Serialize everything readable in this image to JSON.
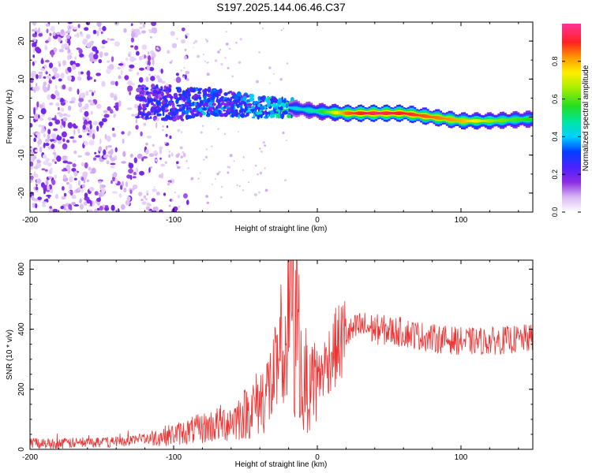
{
  "title": "S197.2025.144.06.46.C37",
  "chart_data": [
    {
      "type": "heatmap",
      "xlabel": "Height of straight line (km)",
      "ylabel": "Frequency (Hz)",
      "xlim": [
        -200,
        150
      ],
      "ylim": [
        -25,
        25
      ],
      "xticks": [
        -200,
        -100,
        0,
        100
      ],
      "yticks": [
        -20,
        -10,
        0,
        10,
        20
      ],
      "colorbar": {
        "label": "Normalized spectral amplitude",
        "range": [
          0,
          1
        ],
        "ticks": [
          "0.0",
          "0.2",
          "0.4",
          "0.6",
          "0.8"
        ],
        "tick_values": [
          0,
          0.2,
          0.4,
          0.6,
          0.8
        ]
      },
      "ridge": {
        "x": [
          -120,
          -100,
          -80,
          -60,
          -40,
          -20,
          0,
          20,
          40,
          60,
          80,
          100,
          120,
          150
        ],
        "frequency": [
          4,
          3.5,
          4,
          3.5,
          2.5,
          2.5,
          1.5,
          1,
          1,
          1,
          0,
          -1,
          -1,
          -0.5
        ],
        "amplitude": [
          0.22,
          0.25,
          0.3,
          0.28,
          0.35,
          0.4,
          0.5,
          0.85,
          0.95,
          0.9,
          0.85,
          0.8,
          0.65,
          0.55
        ]
      },
      "noise_region": [
        -200,
        -120
      ]
    },
    {
      "type": "line",
      "xlabel": "Height of straight line (km)",
      "ylabel": "SNR (10 * v/v)",
      "xlim": [
        -200,
        150
      ],
      "ylim": [
        0,
        630
      ],
      "xticks": [
        -200,
        -100,
        0,
        100
      ],
      "yticks": [
        0,
        200,
        400,
        600
      ],
      "series": [
        {
          "name": "SNR",
          "color": "#ee3333",
          "x": [
            -200,
            -180,
            -160,
            -140,
            -120,
            -100,
            -80,
            -60,
            -50,
            -40,
            -30,
            -25,
            -20,
            -18,
            -16,
            -14,
            -12,
            -10,
            -8,
            -5,
            0,
            10,
            20,
            30,
            40,
            60,
            80,
            100,
            120,
            150
          ],
          "y": [
            20,
            20,
            22,
            25,
            35,
            50,
            70,
            95,
            120,
            160,
            230,
            280,
            400,
            630,
            250,
            520,
            300,
            150,
            240,
            180,
            230,
            320,
            380,
            410,
            400,
            390,
            370,
            360,
            360,
            370
          ]
        }
      ]
    }
  ]
}
